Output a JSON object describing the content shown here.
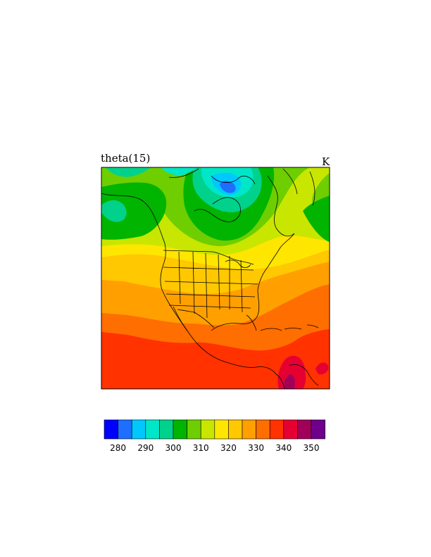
{
  "title": "theta(15)",
  "units": "K",
  "colorbar": {
    "colors": [
      "#0000ff",
      "#1e6eff",
      "#00c8ff",
      "#00e6c8",
      "#00d28c",
      "#00b400",
      "#6ece00",
      "#c8e600",
      "#ffe600",
      "#ffc800",
      "#ffa000",
      "#ff6e00",
      "#ff3200",
      "#e60032",
      "#a0005a",
      "#6e008c"
    ],
    "tick_labels": [
      "280",
      "290",
      "300",
      "310",
      "320",
      "330",
      "340",
      "350"
    ]
  }
}
